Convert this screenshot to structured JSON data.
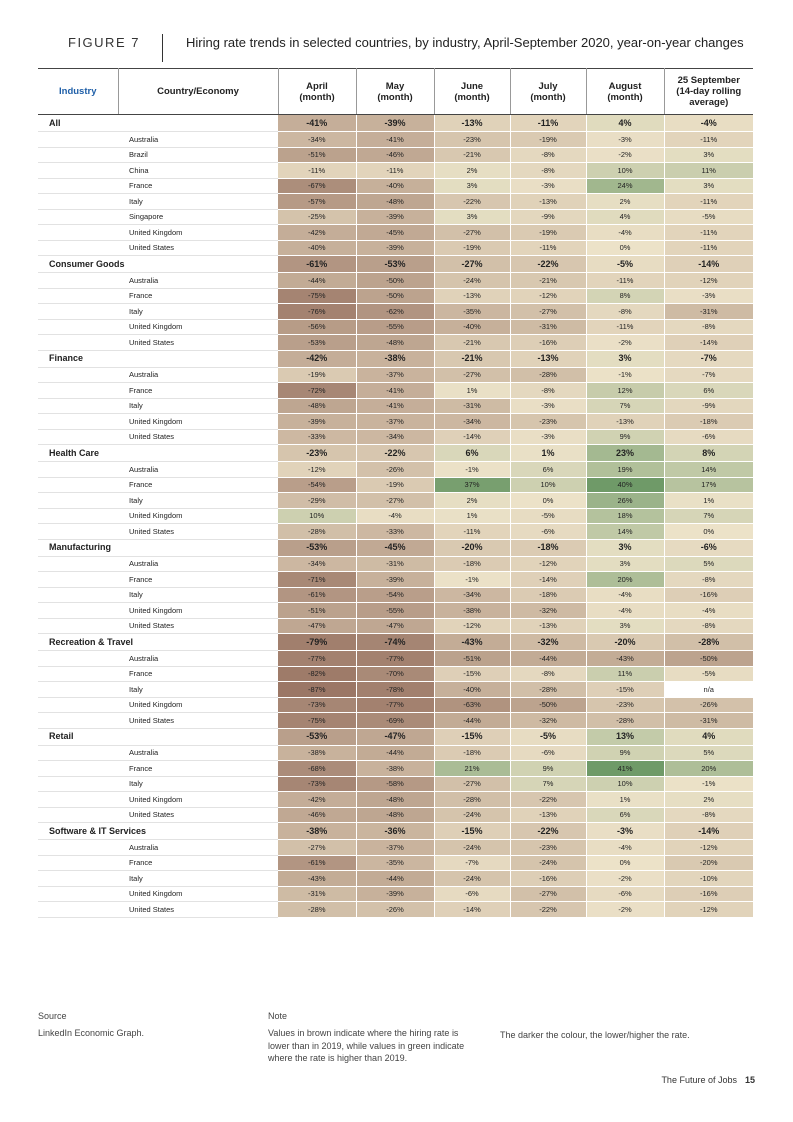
{
  "figure": {
    "label": "FIGURE 7",
    "title": "Hiring rate trends in selected countries, by industry, April-September 2020, year-on-year changes"
  },
  "columns": {
    "industry": "Industry",
    "country": "Country/Economy",
    "values": [
      [
        "April",
        "(month)"
      ],
      [
        "May",
        "(month)"
      ],
      [
        "June",
        "(month)"
      ],
      [
        "July",
        "(month)"
      ],
      [
        "August",
        "(month)"
      ],
      [
        "25 September",
        "(14-day rolling",
        "average)"
      ]
    ]
  },
  "industries": [
    {
      "name": "All",
      "values": [
        "-41%",
        "-39%",
        "-13%",
        "-11%",
        "4%",
        "-4%"
      ],
      "countries": [
        {
          "name": "Australia",
          "values": [
            "-34%",
            "-41%",
            "-23%",
            "-19%",
            "-3%",
            "-11%"
          ]
        },
        {
          "name": "Brazil",
          "values": [
            "-51%",
            "-46%",
            "-21%",
            "-8%",
            "-2%",
            "3%"
          ]
        },
        {
          "name": "China",
          "values": [
            "-11%",
            "-11%",
            "2%",
            "-8%",
            "10%",
            "11%"
          ]
        },
        {
          "name": "France",
          "values": [
            "-67%",
            "-40%",
            "3%",
            "-3%",
            "24%",
            "3%"
          ]
        },
        {
          "name": "Italy",
          "values": [
            "-57%",
            "-48%",
            "-22%",
            "-13%",
            "2%",
            "-11%"
          ]
        },
        {
          "name": "Singapore",
          "values": [
            "-25%",
            "-39%",
            "3%",
            "-9%",
            "4%",
            "-5%"
          ]
        },
        {
          "name": "United Kingdom",
          "values": [
            "-42%",
            "-45%",
            "-27%",
            "-19%",
            "-4%",
            "-11%"
          ]
        },
        {
          "name": "United States",
          "values": [
            "-40%",
            "-39%",
            "-19%",
            "-11%",
            "0%",
            "-11%"
          ]
        }
      ]
    },
    {
      "name": "Consumer Goods",
      "values": [
        "-61%",
        "-53%",
        "-27%",
        "-22%",
        "-5%",
        "-14%"
      ],
      "countries": [
        {
          "name": "Australia",
          "values": [
            "-44%",
            "-50%",
            "-24%",
            "-21%",
            "-11%",
            "-12%"
          ]
        },
        {
          "name": "France",
          "values": [
            "-75%",
            "-50%",
            "-13%",
            "-12%",
            "8%",
            "-3%"
          ]
        },
        {
          "name": "Italy",
          "values": [
            "-76%",
            "-62%",
            "-35%",
            "-27%",
            "-8%",
            "-31%"
          ]
        },
        {
          "name": "United Kingdom",
          "values": [
            "-56%",
            "-55%",
            "-40%",
            "-31%",
            "-11%",
            "-8%"
          ]
        },
        {
          "name": "United States",
          "values": [
            "-53%",
            "-48%",
            "-21%",
            "-16%",
            "-2%",
            "-14%"
          ]
        }
      ]
    },
    {
      "name": "Finance",
      "values": [
        "-42%",
        "-38%",
        "-21%",
        "-13%",
        "3%",
        "-7%"
      ],
      "countries": [
        {
          "name": "Australia",
          "values": [
            "-19%",
            "-37%",
            "-27%",
            "-28%",
            "-1%",
            "-7%"
          ]
        },
        {
          "name": "France",
          "values": [
            "-72%",
            "-41%",
            "1%",
            "-8%",
            "12%",
            "6%"
          ]
        },
        {
          "name": "Italy",
          "values": [
            "-48%",
            "-41%",
            "-31%",
            "-3%",
            "7%",
            "-9%"
          ]
        },
        {
          "name": "United Kingdom",
          "values": [
            "-39%",
            "-37%",
            "-34%",
            "-23%",
            "-13%",
            "-18%"
          ]
        },
        {
          "name": "United States",
          "values": [
            "-33%",
            "-34%",
            "-14%",
            "-3%",
            "9%",
            "-6%"
          ]
        }
      ]
    },
    {
      "name": "Health Care",
      "values": [
        "-23%",
        "-22%",
        "6%",
        "1%",
        "23%",
        "8%"
      ],
      "countries": [
        {
          "name": "Australia",
          "values": [
            "-12%",
            "-26%",
            "-1%",
            "6%",
            "19%",
            "14%"
          ]
        },
        {
          "name": "France",
          "values": [
            "-54%",
            "-19%",
            "37%",
            "10%",
            "40%",
            "17%"
          ]
        },
        {
          "name": "Italy",
          "values": [
            "-29%",
            "-27%",
            "2%",
            "0%",
            "26%",
            "1%"
          ]
        },
        {
          "name": "United Kingdom",
          "values": [
            "10%",
            "-4%",
            "1%",
            "-5%",
            "18%",
            "7%"
          ]
        },
        {
          "name": "United States",
          "values": [
            "-28%",
            "-33%",
            "-11%",
            "-6%",
            "14%",
            "0%"
          ]
        }
      ]
    },
    {
      "name": "Manufacturing",
      "values": [
        "-53%",
        "-45%",
        "-20%",
        "-18%",
        "3%",
        "-6%"
      ],
      "countries": [
        {
          "name": "Australia",
          "values": [
            "-34%",
            "-31%",
            "-18%",
            "-12%",
            "3%",
            "5%"
          ]
        },
        {
          "name": "France",
          "values": [
            "-71%",
            "-39%",
            "-1%",
            "-14%",
            "20%",
            "-8%"
          ]
        },
        {
          "name": "Italy",
          "values": [
            "-61%",
            "-54%",
            "-34%",
            "-18%",
            "-4%",
            "-16%"
          ]
        },
        {
          "name": "United Kingdom",
          "values": [
            "-51%",
            "-55%",
            "-38%",
            "-32%",
            "-4%",
            "-4%"
          ]
        },
        {
          "name": "United States",
          "values": [
            "-47%",
            "-47%",
            "-12%",
            "-13%",
            "3%",
            "-8%"
          ]
        }
      ]
    },
    {
      "name": "Recreation & Travel",
      "values": [
        "-79%",
        "-74%",
        "-43%",
        "-32%",
        "-20%",
        "-28%"
      ],
      "countries": [
        {
          "name": "Australia",
          "values": [
            "-77%",
            "-77%",
            "-51%",
            "-44%",
            "-43%",
            "-50%"
          ]
        },
        {
          "name": "France",
          "values": [
            "-82%",
            "-70%",
            "-15%",
            "-8%",
            "11%",
            "-5%"
          ]
        },
        {
          "name": "Italy",
          "values": [
            "-87%",
            "-78%",
            "-40%",
            "-28%",
            "-15%",
            "n/a"
          ]
        },
        {
          "name": "United Kingdom",
          "values": [
            "-73%",
            "-77%",
            "-63%",
            "-50%",
            "-23%",
            "-26%"
          ]
        },
        {
          "name": "United States",
          "values": [
            "-75%",
            "-69%",
            "-44%",
            "-32%",
            "-28%",
            "-31%"
          ]
        }
      ]
    },
    {
      "name": "Retail",
      "values": [
        "-53%",
        "-47%",
        "-15%",
        "-5%",
        "13%",
        "4%"
      ],
      "countries": [
        {
          "name": "Australia",
          "values": [
            "-38%",
            "-44%",
            "-18%",
            "-6%",
            "9%",
            "5%"
          ]
        },
        {
          "name": "France",
          "values": [
            "-68%",
            "-38%",
            "21%",
            "9%",
            "41%",
            "20%"
          ]
        },
        {
          "name": "Italy",
          "values": [
            "-73%",
            "-58%",
            "-27%",
            "7%",
            "10%",
            "-1%"
          ]
        },
        {
          "name": "United Kingdom",
          "values": [
            "-42%",
            "-48%",
            "-28%",
            "-22%",
            "1%",
            "2%"
          ]
        },
        {
          "name": "United States",
          "values": [
            "-46%",
            "-48%",
            "-24%",
            "-13%",
            "6%",
            "-8%"
          ]
        }
      ]
    },
    {
      "name": "Software & IT Services",
      "values": [
        "-38%",
        "-36%",
        "-15%",
        "-22%",
        "-3%",
        "-14%"
      ],
      "countries": [
        {
          "name": "Australia",
          "values": [
            "-27%",
            "-37%",
            "-24%",
            "-23%",
            "-4%",
            "-12%"
          ]
        },
        {
          "name": "France",
          "values": [
            "-61%",
            "-35%",
            "-7%",
            "-24%",
            "0%",
            "-20%"
          ]
        },
        {
          "name": "Italy",
          "values": [
            "-43%",
            "-44%",
            "-24%",
            "-16%",
            "-2%",
            "-10%"
          ]
        },
        {
          "name": "United Kingdom",
          "values": [
            "-31%",
            "-39%",
            "-6%",
            "-27%",
            "-6%",
            "-16%"
          ]
        },
        {
          "name": "United States",
          "values": [
            "-28%",
            "-26%",
            "-14%",
            "-22%",
            "-2%",
            "-12%"
          ]
        }
      ]
    }
  ],
  "footer": {
    "source_label": "Source",
    "source_text": "LinkedIn Economic Graph.",
    "note_label": "Note",
    "note_text": "Values in brown indicate where the hiring rate is lower than in 2019, while values in green indicate where the rate is higher than 2019.",
    "note_text2": "The darker the colour, the lower/higher the rate.",
    "report_name": "The Future of Jobs",
    "page_number": "15"
  },
  "colors": {
    "negative": "#9b7766",
    "neutral": "#ece2c8",
    "positive": "#6f9a68",
    "industry_header": "#1f5fa8"
  }
}
